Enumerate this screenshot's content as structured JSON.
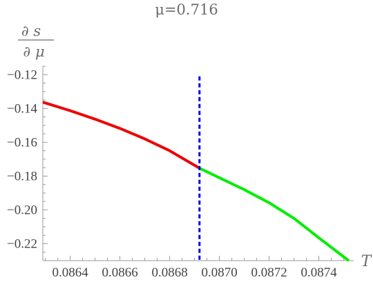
{
  "chart_data": {
    "type": "line",
    "title": "μ=0.716",
    "ylabel_numerator": "∂ s",
    "ylabel_denominator": "∂ μ",
    "xlabel": "T",
    "xlim": [
      0.08629,
      0.08754
    ],
    "ylim": [
      -0.23,
      -0.115
    ],
    "x_ticks": [
      0.0864,
      0.0866,
      0.0868,
      0.087,
      0.0872,
      0.0874
    ],
    "x_tick_labels": [
      "0.0864",
      "0.0866",
      "0.0868",
      "0.0870",
      "0.0872",
      "0.0874"
    ],
    "y_ticks": [
      -0.12,
      -0.14,
      -0.16,
      -0.18,
      -0.2,
      -0.22
    ],
    "y_tick_labels": [
      "−0.12",
      "−0.14",
      "−0.16",
      "−0.18",
      "−0.20",
      "−0.22"
    ],
    "series": [
      {
        "color": "#ee0000",
        "points": [
          [
            0.08629,
            -0.1363
          ],
          [
            0.0864,
            -0.1413
          ],
          [
            0.0865,
            -0.1463
          ],
          [
            0.0866,
            -0.1518
          ],
          [
            0.0867,
            -0.158
          ],
          [
            0.0868,
            -0.165
          ],
          [
            0.08692,
            -0.1753
          ]
        ]
      },
      {
        "color": "#00ee00",
        "points": [
          [
            0.08692,
            -0.1753
          ],
          [
            0.087,
            -0.181
          ],
          [
            0.0871,
            -0.188
          ],
          [
            0.0872,
            -0.1958
          ],
          [
            0.0873,
            -0.205
          ],
          [
            0.0874,
            -0.2165
          ],
          [
            0.08752,
            -0.23
          ]
        ]
      }
    ],
    "vline": {
      "x": 0.08692,
      "color": "#0000dd",
      "style": "dashed",
      "y_top": -0.121
    }
  }
}
